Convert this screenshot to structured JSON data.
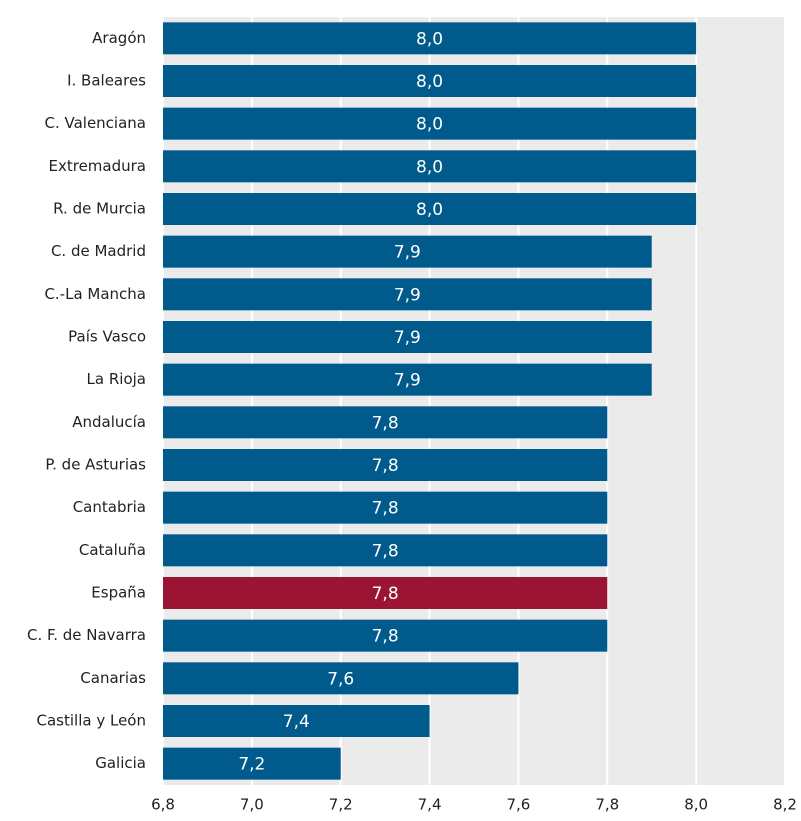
{
  "chart_data": {
    "type": "bar",
    "orientation": "horizontal",
    "categories": [
      "Aragón",
      "I. Baleares",
      "C. Valenciana",
      "Extremadura",
      "R. de Murcia",
      "C. de Madrid",
      "C.-La Mancha",
      "País Vasco",
      "La Rioja",
      "Andalucía",
      "P. de Asturias",
      "Cantabria",
      "Cataluña",
      "España",
      "C. F. de Navarra",
      "Canarias",
      "Castilla y León",
      "Galicia"
    ],
    "values": [
      8.0,
      8.0,
      8.0,
      8.0,
      8.0,
      7.9,
      7.9,
      7.9,
      7.9,
      7.8,
      7.8,
      7.8,
      7.8,
      7.8,
      7.8,
      7.6,
      7.4,
      7.2
    ],
    "value_labels": [
      "8,0",
      "8,0",
      "8,0",
      "8,0",
      "8,0",
      "7,9",
      "7,9",
      "7,9",
      "7,9",
      "7,8",
      "7,8",
      "7,8",
      "7,8",
      "7,8",
      "7,8",
      "7,6",
      "7,4",
      "7,2"
    ],
    "colors": [
      "#005a8c",
      "#005a8c",
      "#005a8c",
      "#005a8c",
      "#005a8c",
      "#005a8c",
      "#005a8c",
      "#005a8c",
      "#005a8c",
      "#005a8c",
      "#005a8c",
      "#005a8c",
      "#005a8c",
      "#9b1434",
      "#005a8c",
      "#005a8c",
      "#005a8c",
      "#005a8c"
    ],
    "xlim": [
      6.8,
      8.2
    ],
    "xticks": [
      {
        "value": 6.8,
        "label": "6,8"
      },
      {
        "value": 7.0,
        "label": "7,0"
      },
      {
        "value": 7.2,
        "label": "7,2"
      },
      {
        "value": 7.4,
        "label": "7,4"
      },
      {
        "value": 7.6,
        "label": "7,6"
      },
      {
        "value": 7.8,
        "label": "7,8"
      },
      {
        "value": 8.0,
        "label": "8,0"
      },
      {
        "value": 8.2,
        "label": "8,2"
      }
    ],
    "grid": true
  }
}
